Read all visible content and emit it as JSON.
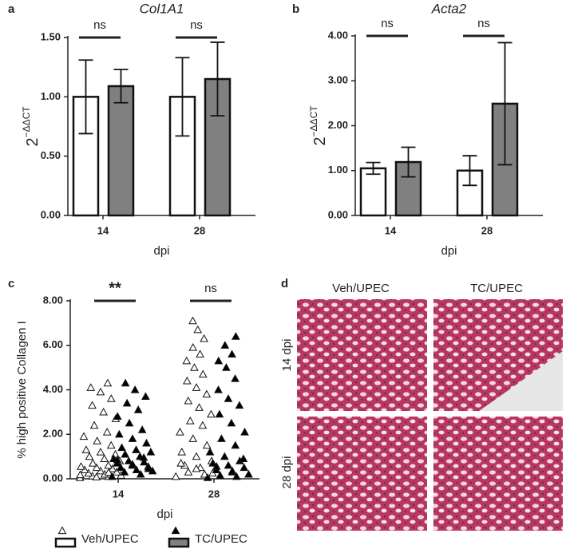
{
  "chart_data": [
    {
      "type": "bar",
      "panel": "a",
      "title": "Col1A1",
      "ylabel": "2",
      "ylabel_sup": "−ΔΔCT",
      "xlabel": "dpi",
      "categories": [
        "14",
        "28"
      ],
      "significance": [
        "ns",
        "ns"
      ],
      "series": [
        {
          "name": "Veh/UPEC",
          "color": "#ffffff",
          "values": [
            1.0,
            1.0
          ],
          "errors": [
            0.31,
            0.33
          ]
        },
        {
          "name": "TC/UPEC",
          "color": "#808080",
          "values": [
            1.09,
            1.15
          ],
          "errors": [
            0.14,
            0.31
          ]
        }
      ],
      "ylim": [
        0,
        1.5
      ],
      "yticks": [
        {
          "value": 0,
          "label": "0.00"
        },
        {
          "value": 0.5,
          "label": "0.50"
        },
        {
          "value": 1,
          "label": "1.00"
        },
        {
          "value": 1.5,
          "label": "1.50"
        }
      ]
    },
    {
      "type": "bar",
      "panel": "b",
      "title": "Acta2",
      "ylabel": "2",
      "ylabel_sup": "−ΔΔCT",
      "xlabel": "dpi",
      "categories": [
        "14",
        "28"
      ],
      "significance": [
        "ns",
        "ns"
      ],
      "series": [
        {
          "name": "Veh/UPEC",
          "color": "#ffffff",
          "values": [
            1.05,
            1.0
          ],
          "errors": [
            0.13,
            0.33
          ]
        },
        {
          "name": "TC/UPEC",
          "color": "#808080",
          "values": [
            1.19,
            2.49
          ],
          "errors": [
            0.33,
            1.36
          ]
        }
      ],
      "ylim": [
        0,
        4
      ],
      "yticks": [
        {
          "value": 0,
          "label": "0.00"
        },
        {
          "value": 1,
          "label": "1.00"
        },
        {
          "value": 2,
          "label": "2.00"
        },
        {
          "value": 3,
          "label": "3.00"
        },
        {
          "value": 4,
          "label": "4.00"
        }
      ]
    },
    {
      "type": "strip",
      "panel": "c",
      "ylabel": "% high positive Collagen I",
      "xlabel": "dpi",
      "categories": [
        "14",
        "28"
      ],
      "significance": [
        "**",
        "ns"
      ],
      "series": [
        {
          "name": "Veh/UPEC",
          "color": "#ffffff",
          "values": [
            [
              0.05,
              0.1,
              0.12,
              0.15,
              0.2,
              0.25,
              0.3,
              0.35,
              0.4,
              0.45,
              0.5,
              0.55,
              0.6,
              0.7,
              0.8,
              0.9,
              1.0,
              1.1,
              1.2,
              1.3,
              1.5,
              1.7,
              1.9,
              2.1,
              2.4,
              2.7,
              3.0,
              3.3,
              3.6,
              3.9,
              4.1,
              4.3,
              0.08,
              0.18,
              0.28
            ],
            [
              0.1,
              0.2,
              0.3,
              0.4,
              0.5,
              0.6,
              0.8,
              1.0,
              1.2,
              1.5,
              1.8,
              2.1,
              2.4,
              2.6,
              2.9,
              3.2,
              3.5,
              3.8,
              4.1,
              4.4,
              4.7,
              5.0,
              5.3,
              5.6,
              5.9,
              6.3,
              6.7,
              7.1,
              0.25,
              0.45,
              0.7
            ]
          ]
        },
        {
          "name": "TC/UPEC",
          "color": "#000000",
          "values": [
            [
              0.1,
              0.2,
              0.3,
              0.35,
              0.4,
              0.5,
              0.55,
              0.6,
              0.7,
              0.75,
              0.8,
              0.9,
              1.0,
              1.1,
              1.2,
              1.3,
              1.4,
              1.6,
              1.8,
              2.0,
              2.2,
              2.5,
              2.8,
              3.1,
              3.4,
              3.7,
              4.0,
              4.3,
              0.45,
              0.65,
              0.85,
              0.95
            ],
            [
              0.05,
              0.1,
              0.15,
              0.2,
              0.3,
              0.4,
              0.5,
              0.6,
              0.7,
              0.8,
              1.0,
              1.2,
              1.5,
              1.8,
              2.1,
              2.5,
              2.9,
              3.3,
              3.6,
              4.0,
              4.5,
              5.0,
              5.3,
              5.6,
              6.0,
              6.4,
              0.35,
              0.55,
              0.9
            ]
          ]
        }
      ],
      "ylim": [
        0,
        8
      ],
      "yticks": [
        {
          "value": 0,
          "label": "0.00"
        },
        {
          "value": 2,
          "label": "2.00"
        },
        {
          "value": 4,
          "label": "4.00"
        },
        {
          "value": 6,
          "label": "6.00"
        },
        {
          "value": 8,
          "label": "8.00"
        }
      ]
    }
  ],
  "image_panel": {
    "panel": "d",
    "columns": [
      "Veh/UPEC",
      "TC/UPEC"
    ],
    "rows": [
      "14 dpi",
      "28 dpi"
    ]
  }
}
